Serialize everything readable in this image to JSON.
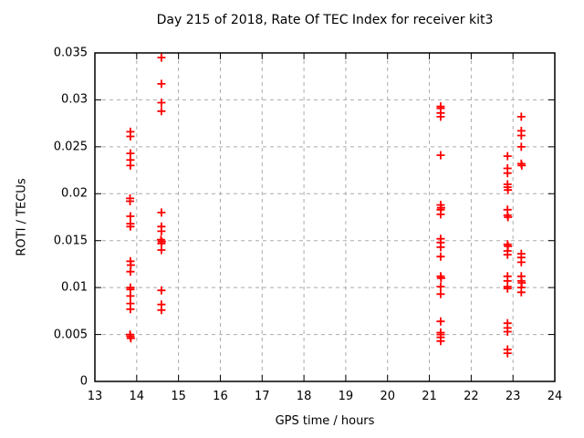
{
  "chart_data": {
    "type": "scatter",
    "title": "Day 215 of 2018, Rate Of TEC Index for receiver kit3",
    "xlabel": "GPS time / hours",
    "ylabel": "ROTI / TECUs",
    "xlim": [
      13,
      24
    ],
    "ylim": [
      0,
      0.035
    ],
    "xticks": [
      13,
      14,
      15,
      16,
      17,
      18,
      19,
      20,
      21,
      22,
      23,
      24
    ],
    "xtick_labels": [
      "13",
      "14",
      "15",
      "16",
      "17",
      "18",
      "19",
      "20",
      "21",
      "22",
      "23",
      "24"
    ],
    "yticks": [
      0,
      0.005,
      0.01,
      0.015,
      0.02,
      0.025,
      0.03,
      0.035
    ],
    "ytick_labels": [
      "0",
      "0.005",
      "0.01",
      "0.015",
      "0.02",
      "0.025",
      "0.03",
      "0.035"
    ],
    "grid": true,
    "grid_color": "#ababab",
    "border_color": "#000000",
    "marker": {
      "shape": "plus",
      "color": "#ff0000",
      "size": 9
    },
    "legend": "none",
    "series": [
      {
        "points": [
          [
            13.85,
            0.0266
          ],
          [
            13.85,
            0.0261
          ],
          [
            13.85,
            0.0243
          ],
          [
            13.85,
            0.0236
          ],
          [
            13.85,
            0.023
          ],
          [
            13.84,
            0.0195
          ],
          [
            13.84,
            0.0192
          ],
          [
            13.85,
            0.0176
          ],
          [
            13.85,
            0.0168
          ],
          [
            13.85,
            0.0165
          ],
          [
            13.85,
            0.0128
          ],
          [
            13.86,
            0.0124
          ],
          [
            13.85,
            0.0117
          ],
          [
            13.85,
            0.01
          ],
          [
            13.85,
            0.0098
          ],
          [
            13.85,
            0.0091
          ],
          [
            13.85,
            0.0083
          ],
          [
            13.85,
            0.0077
          ],
          [
            13.84,
            0.005
          ],
          [
            13.85,
            0.0048
          ],
          [
            13.86,
            0.0046
          ],
          [
            14.59,
            0.0345
          ],
          [
            14.59,
            0.0317
          ],
          [
            14.59,
            0.0297
          ],
          [
            14.59,
            0.0288
          ],
          [
            14.59,
            0.018
          ],
          [
            14.59,
            0.0165
          ],
          [
            14.59,
            0.016
          ],
          [
            14.58,
            0.0151
          ],
          [
            14.6,
            0.0149
          ],
          [
            14.59,
            0.0147
          ],
          [
            14.59,
            0.014
          ],
          [
            14.59,
            0.0097
          ],
          [
            14.59,
            0.0082
          ],
          [
            14.59,
            0.0076
          ],
          [
            21.27,
            0.0293
          ],
          [
            21.27,
            0.0291
          ],
          [
            21.27,
            0.0286
          ],
          [
            21.27,
            0.0282
          ],
          [
            21.27,
            0.0241
          ],
          [
            21.27,
            0.0188
          ],
          [
            21.28,
            0.0185
          ],
          [
            21.27,
            0.0183
          ],
          [
            21.27,
            0.0178
          ],
          [
            21.27,
            0.0152
          ],
          [
            21.27,
            0.0148
          ],
          [
            21.27,
            0.0143
          ],
          [
            21.27,
            0.0133
          ],
          [
            21.27,
            0.0112
          ],
          [
            21.28,
            0.011
          ],
          [
            21.27,
            0.0101
          ],
          [
            21.27,
            0.0093
          ],
          [
            21.27,
            0.0064
          ],
          [
            21.27,
            0.0052
          ],
          [
            21.27,
            0.005
          ],
          [
            21.27,
            0.0047
          ],
          [
            21.27,
            0.0043
          ],
          [
            22.87,
            0.024
          ],
          [
            22.87,
            0.0227
          ],
          [
            22.87,
            0.0222
          ],
          [
            22.87,
            0.021
          ],
          [
            22.87,
            0.0207
          ],
          [
            22.88,
            0.0204
          ],
          [
            22.87,
            0.0183
          ],
          [
            22.87,
            0.0177
          ],
          [
            22.88,
            0.0175
          ],
          [
            22.87,
            0.0146
          ],
          [
            22.88,
            0.0144
          ],
          [
            22.87,
            0.0139
          ],
          [
            22.87,
            0.0135
          ],
          [
            22.87,
            0.0112
          ],
          [
            22.87,
            0.0107
          ],
          [
            22.87,
            0.0101
          ],
          [
            22.87,
            0.0099
          ],
          [
            22.87,
            0.0062
          ],
          [
            22.87,
            0.0057
          ],
          [
            22.87,
            0.0053
          ],
          [
            22.87,
            0.0034
          ],
          [
            22.87,
            0.003
          ],
          [
            23.2,
            0.0282
          ],
          [
            23.2,
            0.0267
          ],
          [
            23.2,
            0.0262
          ],
          [
            23.2,
            0.025
          ],
          [
            23.2,
            0.0232
          ],
          [
            23.21,
            0.023
          ],
          [
            23.2,
            0.0136
          ],
          [
            23.2,
            0.0132
          ],
          [
            23.2,
            0.0127
          ],
          [
            23.2,
            0.0112
          ],
          [
            23.2,
            0.0107
          ],
          [
            23.21,
            0.0105
          ],
          [
            23.2,
            0.01
          ],
          [
            23.2,
            0.0095
          ]
        ]
      }
    ]
  }
}
